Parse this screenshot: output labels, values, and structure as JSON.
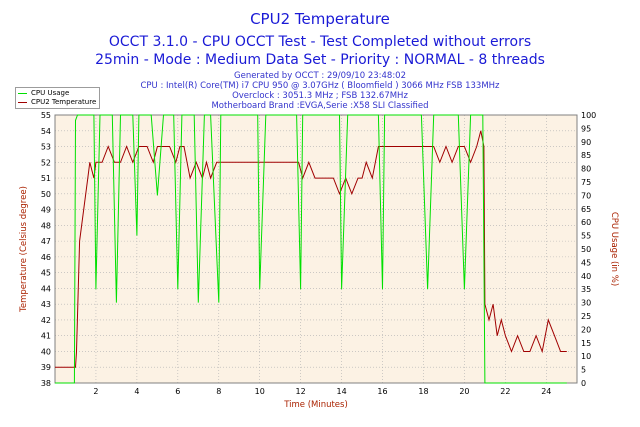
{
  "header": {
    "title": "CPU2 Temperature",
    "subtitle1": "OCCT 3.1.0 - CPU OCCT Test - Test Completed without errors",
    "subtitle2": "25min - Mode : Medium Data Set - Priority : NORMAL - 8 threads",
    "generated": "Generated by OCCT : 29/09/10 23:48:02",
    "cpu": "CPU : Intel(R) Core(TM) i7 CPU 950 @ 3.07GHz ( Bloomfield ) 3066 MHz FSB 133MHz",
    "overclock": "Overclock : 3051.3 MHz ; FSB 132.67MHz",
    "motherboard": "Motherboard Brand :EVGA,Serie :X58 SLI Classified"
  },
  "legend": {
    "cpu_usage": "CPU Usage",
    "cpu2_temp": "CPU2 Temperature"
  },
  "colors": {
    "cpu_usage": "#00e000",
    "temperature": "#a00000",
    "plot_bg": "#fcf2e4",
    "grid": "#b0b0b0",
    "left_axis_text": "#aa2200",
    "right_axis_text": "#aa2200"
  },
  "chart_data": {
    "type": "line",
    "title": "CPU2 Temperature",
    "xlabel": "Time (Minutes)",
    "ylabel": "Temperature (Celsius degree)",
    "y2label": "CPU Usage (in %)",
    "xlim": [
      0,
      25.5
    ],
    "ylim": [
      38,
      55
    ],
    "y2lim": [
      0,
      100
    ],
    "x_ticks": [
      2,
      4,
      6,
      8,
      10,
      12,
      14,
      16,
      18,
      20,
      22,
      24
    ],
    "y_ticks": [
      38,
      39,
      40,
      41,
      42,
      43,
      44,
      45,
      46,
      47,
      48,
      49,
      50,
      51,
      52,
      53,
      54,
      55
    ],
    "y2_ticks": [
      0,
      5,
      10,
      15,
      20,
      25,
      30,
      35,
      40,
      45,
      50,
      55,
      60,
      65,
      70,
      75,
      80,
      85,
      90,
      95,
      100
    ],
    "grid": true,
    "legend_position": "top-left",
    "series": [
      {
        "name": "CPU2 Temperature",
        "axis": "left",
        "x": [
          0,
          1.0,
          1.05,
          1.2,
          1.4,
          1.6,
          1.7,
          1.9,
          2.0,
          2.3,
          2.6,
          2.9,
          3.2,
          3.5,
          3.8,
          4.1,
          4.3,
          4.5,
          4.8,
          5.0,
          5.3,
          5.6,
          5.9,
          6.1,
          6.3,
          6.6,
          6.9,
          7.2,
          7.4,
          7.6,
          7.9,
          8.2,
          8.5,
          8.8,
          9.0,
          9.3,
          9.6,
          9.9,
          10.2,
          10.5,
          10.8,
          11.0,
          11.3,
          11.6,
          11.9,
          12.1,
          12.4,
          12.7,
          13.0,
          13.3,
          13.6,
          13.9,
          14.2,
          14.5,
          14.8,
          15.0,
          15.2,
          15.5,
          15.8,
          16.1,
          16.4,
          16.7,
          17.0,
          17.3,
          17.6,
          17.9,
          18.2,
          18.5,
          18.8,
          19.1,
          19.4,
          19.7,
          20.0,
          20.3,
          20.6,
          20.8,
          20.95,
          21.0,
          21.2,
          21.4,
          21.6,
          21.8,
          22.0,
          22.3,
          22.6,
          22.9,
          23.2,
          23.5,
          23.8,
          24.1,
          24.4,
          24.7,
          25.0
        ],
        "values": [
          39,
          39,
          40,
          47,
          49,
          51,
          52,
          51,
          52,
          52,
          53,
          52,
          52,
          53,
          52,
          53,
          53,
          53,
          52,
          53,
          53,
          53,
          52,
          53,
          53,
          51,
          52,
          51,
          52,
          51,
          52,
          52,
          52,
          52,
          52,
          52,
          52,
          52,
          52,
          52,
          52,
          52,
          52,
          52,
          52,
          51,
          52,
          51,
          51,
          51,
          51,
          50,
          51,
          50,
          51,
          51,
          52,
          51,
          53,
          53,
          53,
          53,
          53,
          53,
          53,
          53,
          53,
          53,
          52,
          53,
          52,
          53,
          53,
          52,
          53,
          54,
          53,
          43,
          42,
          43,
          41,
          42,
          41,
          40,
          41,
          40,
          40,
          41,
          40,
          42,
          41,
          40,
          40
        ]
      },
      {
        "name": "CPU Usage",
        "axis": "right",
        "x": [
          0,
          0.95,
          1.0,
          1.1,
          1.3,
          1.6,
          1.9,
          2.0,
          2.2,
          2.5,
          2.8,
          3.0,
          3.2,
          3.5,
          3.8,
          4.0,
          4.1,
          4.4,
          4.7,
          5.0,
          5.3,
          5.6,
          5.8,
          6.0,
          6.2,
          6.5,
          6.8,
          7.0,
          7.3,
          7.6,
          8.0,
          8.1,
          8.4,
          8.7,
          9.0,
          9.3,
          9.6,
          9.9,
          10.0,
          10.3,
          10.6,
          10.9,
          11.2,
          11.5,
          11.8,
          12.0,
          12.1,
          12.4,
          12.7,
          13.0,
          13.3,
          13.6,
          13.9,
          14.0,
          14.3,
          14.6,
          14.9,
          15.2,
          15.5,
          15.8,
          16.0,
          16.1,
          16.4,
          16.7,
          17.0,
          17.3,
          17.6,
          17.9,
          18.2,
          18.5,
          18.8,
          19.1,
          19.4,
          19.7,
          20.0,
          20.3,
          20.6,
          20.9,
          21.0,
          21.2,
          21.5,
          22.0,
          23.0,
          24.0,
          25.0
        ],
        "values": [
          0,
          0,
          98,
          100,
          100,
          100,
          100,
          35,
          100,
          100,
          100,
          30,
          100,
          100,
          100,
          55,
          100,
          100,
          100,
          70,
          100,
          100,
          100,
          35,
          100,
          100,
          100,
          30,
          100,
          100,
          30,
          100,
          100,
          100,
          100,
          100,
          100,
          100,
          35,
          100,
          100,
          100,
          100,
          100,
          100,
          35,
          100,
          100,
          100,
          100,
          100,
          100,
          100,
          35,
          100,
          100,
          100,
          100,
          100,
          100,
          35,
          100,
          100,
          100,
          100,
          100,
          100,
          100,
          35,
          100,
          100,
          100,
          100,
          100,
          35,
          100,
          100,
          100,
          0,
          0,
          0,
          0,
          0,
          0,
          0
        ]
      }
    ]
  }
}
